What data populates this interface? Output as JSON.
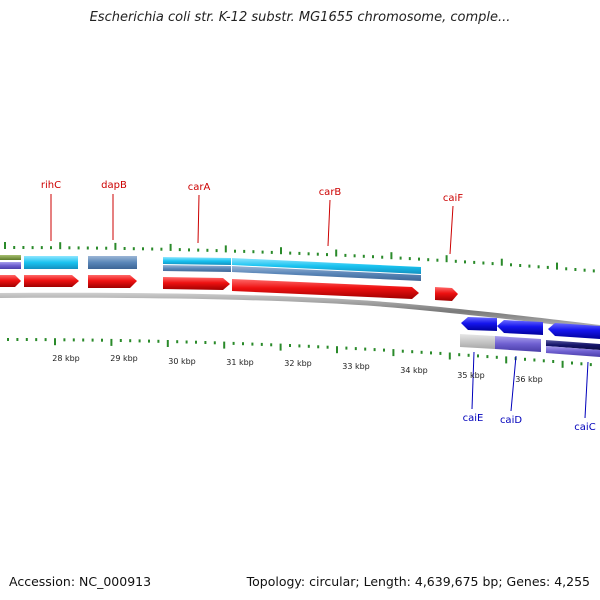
{
  "title": "Escherichia coli str. K-12 substr. MG1655 chromosome, comple...",
  "footer": {
    "accession": "Accession: NC_000913",
    "summary": "Topology: circular; Length: 4,639,675 bp; Genes: 4,255"
  },
  "colors": {
    "gene_label_forward": "#cc0000",
    "gene_label_reverse": "#0000bb",
    "forward_cds": "#ee1111",
    "reverse_cds": "#1111ee",
    "backbone": "#888888",
    "tick_green": "#2a8a2a"
  },
  "ticks": [
    "28 kbp",
    "29 kbp",
    "30 kbp",
    "31 kbp",
    "32 kbp",
    "33 kbp",
    "34 kbp",
    "35 kbp",
    "36 kbp"
  ],
  "genes_forward": [
    {
      "name": "rihC"
    },
    {
      "name": "dapB"
    },
    {
      "name": "carA"
    },
    {
      "name": "carB"
    },
    {
      "name": "caiF"
    }
  ],
  "genes_reverse": [
    {
      "name": "caiE"
    },
    {
      "name": "caiD"
    },
    {
      "name": "caiC"
    }
  ]
}
